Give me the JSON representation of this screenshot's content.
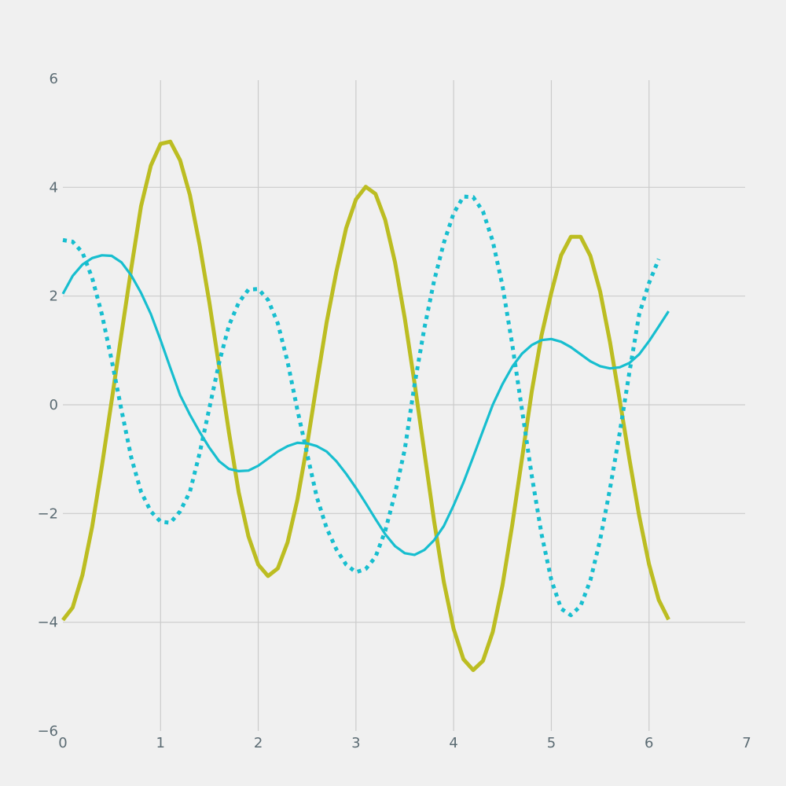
{
  "chart_data": {
    "type": "line",
    "title": "",
    "xlabel": "",
    "ylabel": "",
    "xlim": [
      0,
      7
    ],
    "ylim": [
      -6,
      6
    ],
    "x_ticks": [
      0,
      1,
      2,
      3,
      4,
      5,
      6,
      7
    ],
    "x_tick_labels": [
      "0",
      "1",
      "2",
      "3",
      "4",
      "5",
      "6",
      "7"
    ],
    "y_ticks": [
      6,
      4,
      2,
      0,
      -2,
      -4,
      -6
    ],
    "y_tick_labels": [
      "6",
      "4",
      "2",
      "0",
      "−2",
      "−4",
      "−6"
    ],
    "grid": true,
    "legend": "none",
    "x_start": 0,
    "x_step": 0.1,
    "series": [
      {
        "color": "#bcbd22",
        "style": "solid",
        "weight": "thick",
        "values": [
          -3.96,
          -3.73,
          -3.13,
          -2.24,
          -1.12,
          0.08,
          1.31,
          2.51,
          3.65,
          4.4,
          4.8,
          4.84,
          4.5,
          3.86,
          2.94,
          1.88,
          0.69,
          -0.51,
          -1.61,
          -2.42,
          -2.94,
          -3.15,
          -3.01,
          -2.53,
          -1.75,
          -0.74,
          0.4,
          1.52,
          2.45,
          3.25,
          3.78,
          4.01,
          3.88,
          3.4,
          2.62,
          1.59,
          0.4,
          -0.87,
          -2.14,
          -3.26,
          -4.12,
          -4.68,
          -4.88,
          -4.71,
          -4.18,
          -3.32,
          -2.21,
          -0.99,
          0.25,
          1.28,
          2.06,
          2.75,
          3.09,
          3.09,
          2.74,
          2.08,
          1.16,
          0.09,
          -1.01,
          -2.05,
          -2.93,
          -3.59,
          -3.95
        ]
      },
      {
        "color": "#17becf",
        "style": "dotted",
        "weight": "thick",
        "values": [
          3.03,
          3.0,
          2.8,
          2.33,
          1.66,
          0.82,
          -0.1,
          -0.97,
          -1.6,
          -1.96,
          -2.15,
          -2.17,
          -1.96,
          -1.6,
          -0.89,
          -0.06,
          0.78,
          1.46,
          1.88,
          2.12,
          2.13,
          1.93,
          1.5,
          0.79,
          -0.09,
          -0.9,
          -1.7,
          -2.27,
          -2.66,
          -2.94,
          -3.08,
          -3.02,
          -2.8,
          -2.32,
          -1.63,
          -0.82,
          0.37,
          1.41,
          2.28,
          2.98,
          3.52,
          3.83,
          3.82,
          3.56,
          3.01,
          2.19,
          1.11,
          -0.09,
          -1.31,
          -2.38,
          -3.22,
          -3.75,
          -3.87,
          -3.7,
          -3.23,
          -2.48,
          -1.55,
          -0.52,
          0.61,
          1.67,
          2.24,
          2.68
        ]
      },
      {
        "color": "#17becf",
        "style": "solid",
        "weight": "medium",
        "values": [
          2.04,
          2.37,
          2.58,
          2.7,
          2.75,
          2.74,
          2.62,
          2.38,
          2.06,
          1.67,
          1.19,
          0.68,
          0.18,
          -0.18,
          -0.5,
          -0.79,
          -1.04,
          -1.18,
          -1.22,
          -1.21,
          -1.12,
          -0.99,
          -0.86,
          -0.76,
          -0.7,
          -0.71,
          -0.76,
          -0.86,
          -1.04,
          -1.27,
          -1.53,
          -1.81,
          -2.1,
          -2.38,
          -2.6,
          -2.73,
          -2.76,
          -2.67,
          -2.49,
          -2.23,
          -1.85,
          -1.43,
          -0.96,
          -0.48,
          0.0,
          0.38,
          0.7,
          0.94,
          1.1,
          1.19,
          1.21,
          1.16,
          1.06,
          0.93,
          0.8,
          0.71,
          0.67,
          0.69,
          0.77,
          0.93,
          1.17,
          1.44,
          1.72
        ]
      }
    ]
  }
}
